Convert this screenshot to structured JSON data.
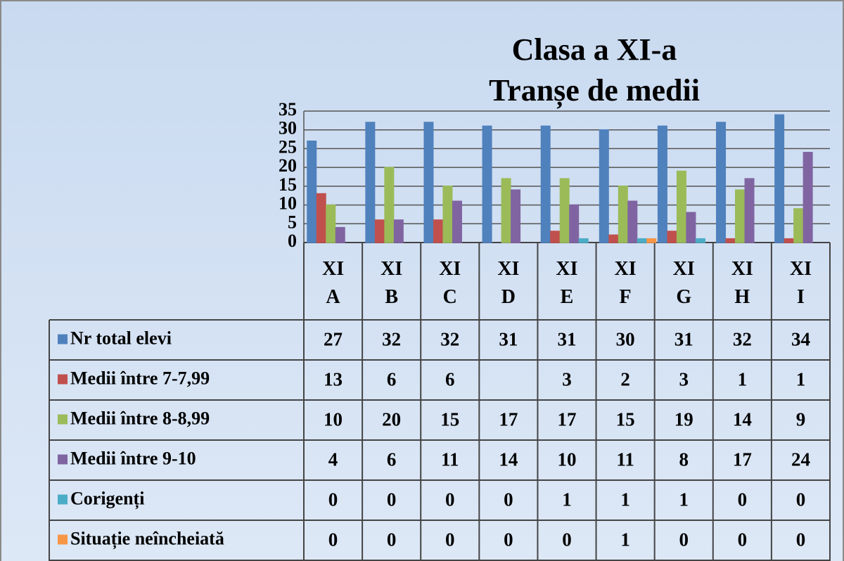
{
  "chart_data": {
    "type": "bar",
    "title": "Clasa a XI-a",
    "subtitle": "Tranșe de medii",
    "categories": [
      "XI A",
      "XI B",
      "XI C",
      "XI D",
      "XI E",
      "XI F",
      "XI G",
      "XI H",
      "XI I"
    ],
    "series": [
      {
        "name": "Nr total elevi",
        "color": "#4f81bd",
        "values": [
          27,
          32,
          32,
          31,
          31,
          30,
          31,
          32,
          34
        ]
      },
      {
        "name": "Medii între 7-7,99",
        "color": "#c0504d",
        "values": [
          13,
          6,
          6,
          null,
          3,
          2,
          3,
          1,
          1
        ]
      },
      {
        "name": "Medii între 8-8,99",
        "color": "#9bbb59",
        "values": [
          10,
          20,
          15,
          17,
          17,
          15,
          19,
          14,
          9
        ]
      },
      {
        "name": "Medii între 9-10",
        "color": "#8064a2",
        "values": [
          4,
          6,
          11,
          14,
          10,
          11,
          8,
          17,
          24
        ]
      },
      {
        "name": "Corigenți",
        "color": "#4bacc6",
        "values": [
          0,
          0,
          0,
          0,
          1,
          1,
          1,
          0,
          0
        ]
      },
      {
        "name": "Situație neîncheiată",
        "color": "#f79646",
        "values": [
          0,
          0,
          0,
          0,
          0,
          1,
          0,
          0,
          0
        ]
      }
    ],
    "ylim": [
      0,
      35
    ],
    "yticks": [
      0,
      5,
      10,
      15,
      20,
      25,
      30,
      35
    ],
    "grid": true
  }
}
